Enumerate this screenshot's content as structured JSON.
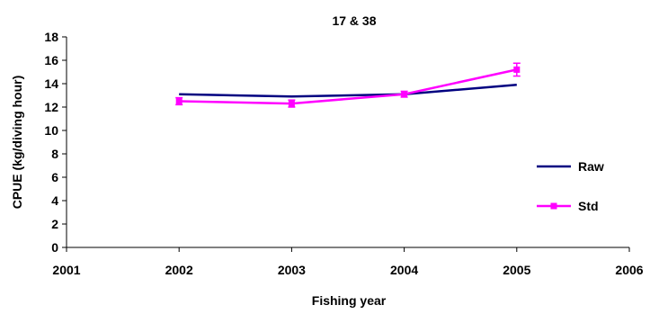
{
  "chart_data": {
    "type": "line",
    "title": "17 & 38",
    "xlabel": "Fishing year",
    "ylabel": "CPUE (kg/diving hour)",
    "xlim": [
      2001,
      2006
    ],
    "ylim": [
      0,
      18
    ],
    "xticks": [
      "2001",
      "2002",
      "2003",
      "2004",
      "2005",
      "2006"
    ],
    "yticks": [
      "0",
      "2",
      "4",
      "6",
      "8",
      "10",
      "12",
      "14",
      "16",
      "18"
    ],
    "grid": false,
    "legend_position": "right",
    "series": [
      {
        "name": "Raw",
        "color": "#000080",
        "marker": "none",
        "x": [
          2002,
          2003,
          2004,
          2005
        ],
        "y": [
          13.1,
          12.9,
          13.1,
          13.9
        ]
      },
      {
        "name": "Std",
        "color": "#ff00ff",
        "marker": "square",
        "x": [
          2002,
          2003,
          2004,
          2005
        ],
        "y": [
          12.5,
          12.3,
          13.1,
          15.2
        ],
        "err": [
          0.3,
          0.3,
          0.25,
          0.55
        ]
      }
    ]
  }
}
